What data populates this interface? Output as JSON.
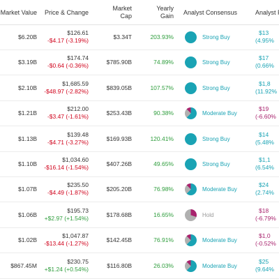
{
  "header": {
    "market_value": "Market Value",
    "price_change": "Price & Change",
    "market_cap_1": "Market",
    "market_cap_2": "Cap",
    "yearly_1": "Yearly",
    "yearly_2": "Gain",
    "consensus": "Analyst Consensus",
    "target": "Analyst P"
  },
  "rows": [
    {
      "market_value": "$6.20B",
      "price": "$126.61",
      "change": "-$4.17 (-3.19%)",
      "change_dir": "neg",
      "market_cap": "$3.34T",
      "yearly_gain": "203.93%",
      "consensus": "Strong Buy",
      "consensus_type": "strong",
      "target_price": "$13",
      "target_pct": "(4.95%",
      "target_dir": "teal"
    },
    {
      "market_value": "$3.19B",
      "price": "$174.74",
      "change": "-$0.64 (-0.36%)",
      "change_dir": "neg",
      "market_cap": "$785.90B",
      "yearly_gain": "74.89%",
      "consensus": "Strong Buy",
      "consensus_type": "strong",
      "target_price": "$17",
      "target_pct": "(0.66%",
      "target_dir": "teal"
    },
    {
      "market_value": "$2.10B",
      "price": "$1,685.59",
      "change": "-$48.97 (-2.82%)",
      "change_dir": "neg",
      "market_cap": "$839.05B",
      "yearly_gain": "107.57%",
      "consensus": "Strong Buy",
      "consensus_type": "strong",
      "target_price": "$1,8",
      "target_pct": "(11.92%",
      "target_dir": "teal"
    },
    {
      "market_value": "$1.21B",
      "price": "$212.00",
      "change": "-$3.47 (-1.61%)",
      "change_dir": "neg",
      "market_cap": "$253.43B",
      "yearly_gain": "90.38%",
      "consensus": "Moderate Buy",
      "consensus_type": "moderate",
      "target_price": "$19",
      "target_pct": "(-6.60%",
      "target_dir": "mag"
    },
    {
      "market_value": "$1.13B",
      "price": "$139.48",
      "change": "-$4.71 (-3.27%)",
      "change_dir": "neg",
      "market_cap": "$169.93B",
      "yearly_gain": "120.41%",
      "consensus": "Strong Buy",
      "consensus_type": "strong",
      "target_price": "$14",
      "target_pct": "(5.48%",
      "target_dir": "teal"
    },
    {
      "market_value": "$1.10B",
      "price": "$1,034.60",
      "change": "-$16.14 (-1.54%)",
      "change_dir": "neg",
      "market_cap": "$407.26B",
      "yearly_gain": "49.65%",
      "consensus": "Strong Buy",
      "consensus_type": "strong",
      "target_price": "$1,1",
      "target_pct": "(6.54%",
      "target_dir": "teal"
    },
    {
      "market_value": "$1.07B",
      "price": "$235.50",
      "change": "-$4.49 (-1.87%)",
      "change_dir": "neg",
      "market_cap": "$205.20B",
      "yearly_gain": "76.98%",
      "consensus": "Moderate Buy",
      "consensus_type": "moderate",
      "target_price": "$24",
      "target_pct": "(2.74%",
      "target_dir": "teal"
    },
    {
      "market_value": "$1.06B",
      "price": "$195.73",
      "change": "+$2.97 (+1.54%)",
      "change_dir": "pos",
      "market_cap": "$178.68B",
      "yearly_gain": "16.65%",
      "consensus": "Hold",
      "consensus_type": "hold",
      "target_price": "$18",
      "target_pct": "(-6.79%",
      "target_dir": "mag"
    },
    {
      "market_value": "$1.02B",
      "price": "$1,047.87",
      "change": "-$13.44 (-1.27%)",
      "change_dir": "neg",
      "market_cap": "$142.45B",
      "yearly_gain": "76.91%",
      "consensus": "Moderate Buy",
      "consensus_type": "moderate",
      "target_price": "$1,0",
      "target_pct": "(-0.52%",
      "target_dir": "mag"
    },
    {
      "market_value": "$867.45M",
      "price": "$230.75",
      "change": "+$1.24 (+0.54%)",
      "change_dir": "pos",
      "market_cap": "$116.80B",
      "yearly_gain": "26.03%",
      "consensus": "Moderate Buy",
      "consensus_type": "moderate",
      "target_price": "$25",
      "target_pct": "(9.64%",
      "target_dir": "teal"
    }
  ],
  "colors": {
    "negative": "#d0021b",
    "positive": "#2e9d3c",
    "strong_buy": "#1aa3b4",
    "hold": "#999999",
    "hold_sell": "#a8236d",
    "moderate_buy": "#1aa3b4"
  },
  "icons": [
    "consensus-pie-icon"
  ]
}
